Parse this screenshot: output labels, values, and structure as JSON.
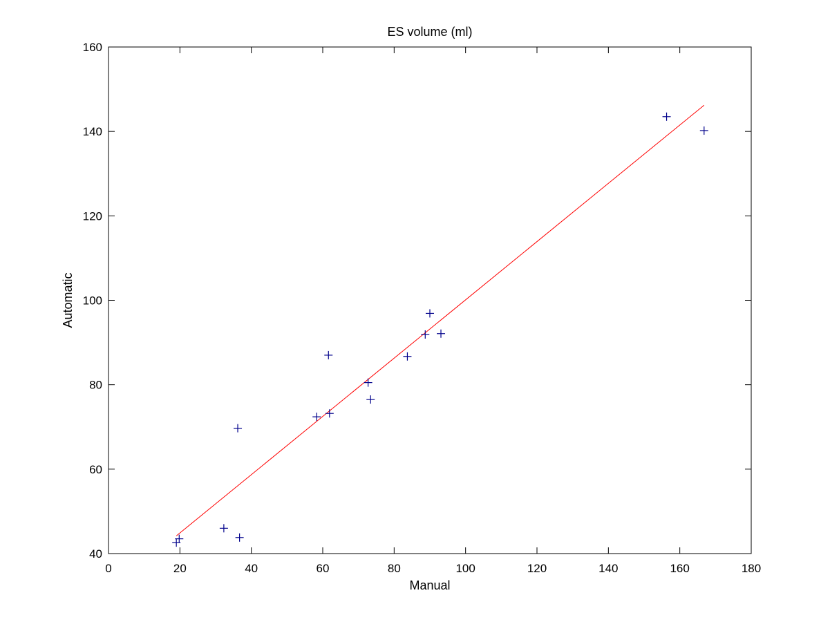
{
  "chart_data": {
    "type": "scatter",
    "title": "ES volume (ml)",
    "xlabel": "Manual",
    "ylabel": "Automatic",
    "xlim": [
      0,
      180
    ],
    "ylim": [
      40,
      160
    ],
    "xticks": [
      0,
      20,
      40,
      60,
      80,
      100,
      120,
      140,
      160,
      180
    ],
    "yticks": [
      40,
      60,
      80,
      100,
      120,
      140,
      160
    ],
    "grid": false,
    "legend": "none",
    "series": [
      {
        "type": "scatter",
        "marker": "+",
        "color": "#00008b",
        "x": [
          19.0,
          19.8,
          32.3,
          36.2,
          36.7,
          58.3,
          61.6,
          61.9,
          72.7,
          73.4,
          83.7,
          88.7,
          90.0,
          93.1,
          156.3,
          166.8
        ],
        "y": [
          42.6,
          43.5,
          46.0,
          69.7,
          43.8,
          72.4,
          87.0,
          73.2,
          80.5,
          76.5,
          86.7,
          91.9,
          96.9,
          92.1,
          143.5,
          140.2
        ]
      },
      {
        "type": "line",
        "color": "#ff0000",
        "x": [
          19.0,
          166.8
        ],
        "y": [
          44.2,
          146.2
        ]
      }
    ]
  }
}
